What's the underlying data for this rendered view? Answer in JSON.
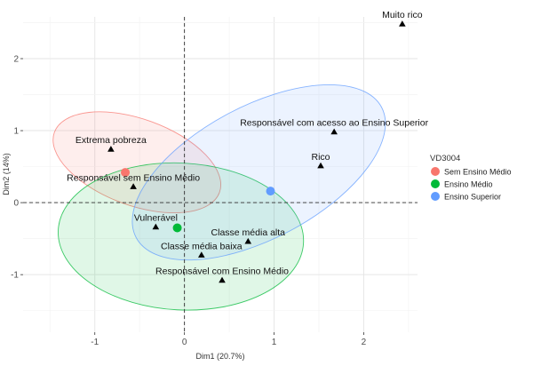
{
  "chart_data": {
    "type": "scatter",
    "xlabel": "Dim1 (20.7%)",
    "ylabel": "Dim2 (14%)",
    "xlim": [
      -1.8,
      2.6
    ],
    "ylim": [
      -1.8,
      2.58
    ],
    "x_ticks": [
      -1,
      0,
      1,
      2
    ],
    "y_ticks": [
      -1,
      0,
      1,
      2
    ],
    "grid": true,
    "legend_title": "VD3004",
    "legend_position": "right",
    "points": [
      {
        "label": "Muito rico",
        "x": 2.43,
        "y": 2.48
      },
      {
        "label": "Responsável com acesso ao Ensino Superior",
        "x": 1.67,
        "y": 0.98
      },
      {
        "label": "Rico",
        "x": 1.52,
        "y": 0.51
      },
      {
        "label": "Extrema pobreza",
        "x": -0.82,
        "y": 0.74
      },
      {
        "label": "Responsável sem Ensino Médio",
        "x": -0.57,
        "y": 0.22
      },
      {
        "label": "Vulnerável",
        "x": -0.32,
        "y": -0.34
      },
      {
        "label": "Classe média alta",
        "x": 0.71,
        "y": -0.54
      },
      {
        "label": "Classe média baixa",
        "x": 0.19,
        "y": -0.73
      },
      {
        "label": "Responsável com Ensino Médio",
        "x": 0.42,
        "y": -1.08
      }
    ],
    "series": [
      {
        "name": "Sem Ensino Médio",
        "color": "#f8766d",
        "centroid": [
          -0.66,
          0.42
        ],
        "ellipse": {
          "cx": -0.53,
          "cy": 0.56,
          "rx": 0.98,
          "ry": 0.6,
          "angle": -20
        }
      },
      {
        "name": "Ensino Médio",
        "color": "#00ba38",
        "centroid": [
          -0.08,
          -0.35
        ],
        "ellipse": {
          "cx": -0.04,
          "cy": -0.47,
          "rx": 1.37,
          "ry": 1.02,
          "angle": -3
        }
      },
      {
        "name": "Ensino Superior",
        "color": "#619cff",
        "centroid": [
          0.96,
          0.16
        ],
        "ellipse": {
          "cx": 0.83,
          "cy": 0.42,
          "rx": 1.55,
          "ry": 0.92,
          "angle": 28
        }
      }
    ]
  }
}
